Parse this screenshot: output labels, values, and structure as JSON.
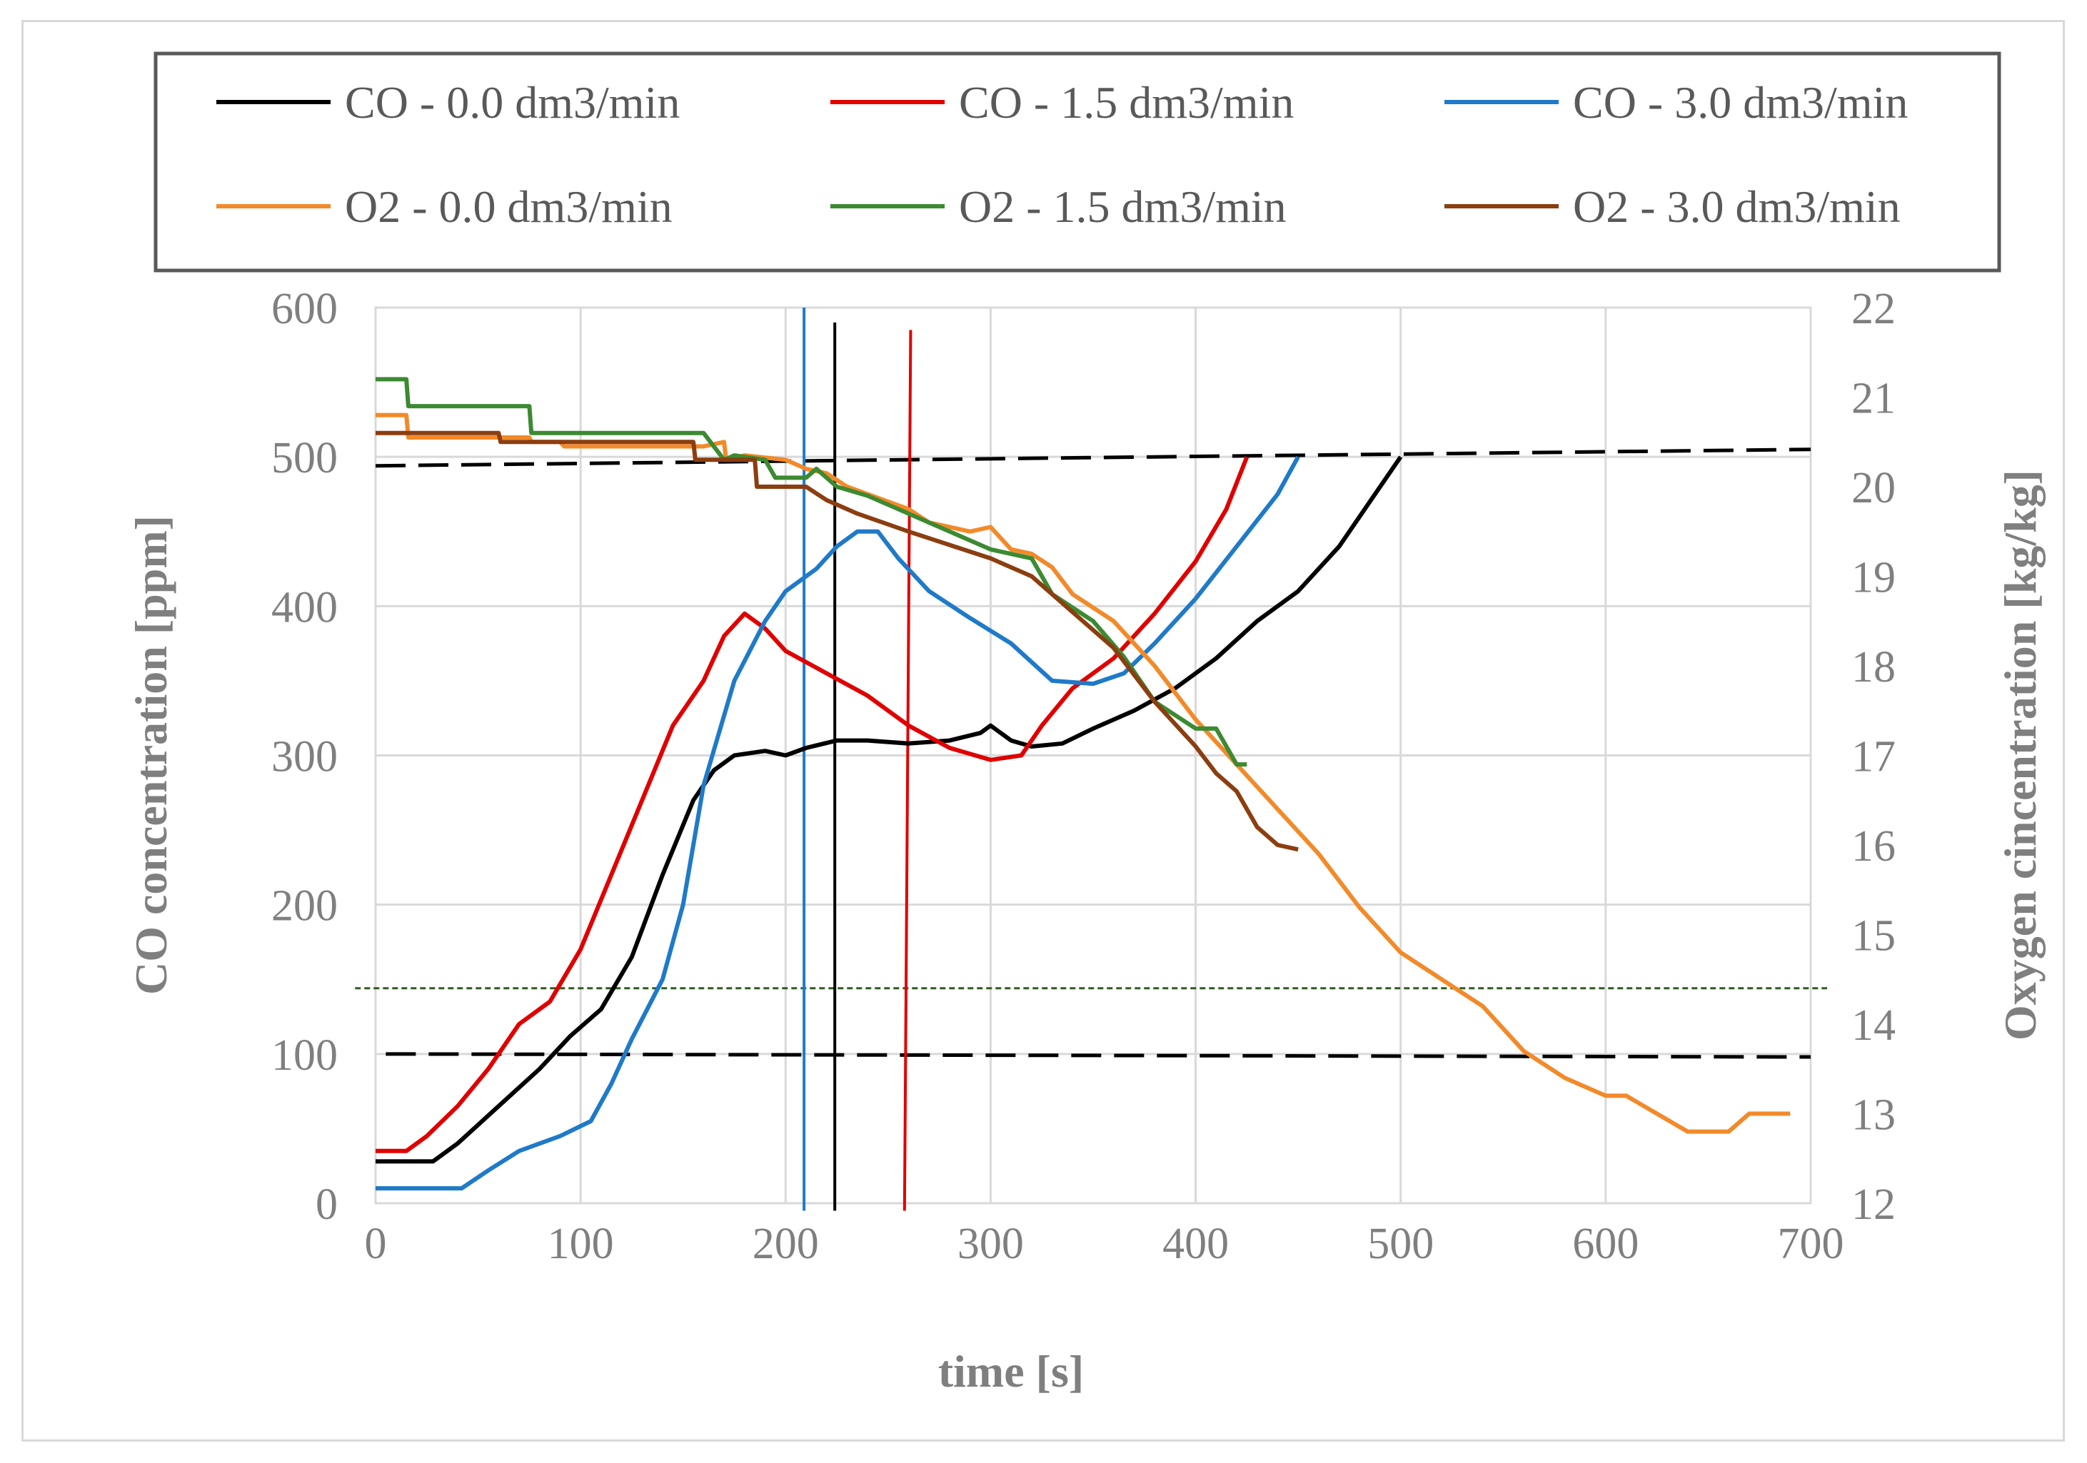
{
  "chart_data": {
    "type": "line",
    "title": "",
    "xlabel": "time [s]",
    "ylabel": "CO concentration [ppm]",
    "y2label": "Oxygen cincentration [kg/kg]",
    "xlim": [
      0,
      700
    ],
    "ylim": [
      0,
      600
    ],
    "y2lim": [
      12,
      22
    ],
    "x_ticks": [
      "0",
      "100",
      "200",
      "300",
      "400",
      "500",
      "600",
      "700"
    ],
    "y_ticks": [
      "0",
      "100",
      "200",
      "300",
      "400",
      "500",
      "600"
    ],
    "y2_ticks": [
      "12",
      "13",
      "14",
      "15",
      "16",
      "17",
      "18",
      "19",
      "20",
      "21",
      "22"
    ],
    "legend_position": "top",
    "grid": true,
    "series": [
      {
        "name": "CO - 0.0 dm3/min",
        "axis": "left",
        "color": "#000000",
        "x": [
          0,
          28,
          40,
          60,
          80,
          95,
          110,
          125,
          140,
          155,
          165,
          175,
          190,
          200,
          210,
          225,
          240,
          260,
          280,
          295,
          300,
          310,
          320,
          335,
          350,
          370,
          390,
          410,
          430,
          450,
          470,
          485,
          500
        ],
        "y": [
          28,
          28,
          40,
          65,
          90,
          112,
          130,
          165,
          220,
          270,
          290,
          300,
          303,
          300,
          305,
          310,
          310,
          308,
          310,
          315,
          320,
          310,
          306,
          308,
          318,
          330,
          345,
          365,
          390,
          410,
          440,
          470,
          500
        ]
      },
      {
        "name": "CO - 1.5 dm3/min",
        "axis": "left",
        "color": "#e00000",
        "x": [
          0,
          15,
          25,
          40,
          55,
          70,
          85,
          100,
          115,
          130,
          145,
          160,
          170,
          180,
          190,
          200,
          220,
          240,
          260,
          280,
          300,
          315,
          325,
          340,
          360,
          380,
          400,
          415,
          425
        ],
        "y": [
          35,
          35,
          45,
          65,
          90,
          120,
          135,
          170,
          220,
          270,
          320,
          350,
          380,
          395,
          385,
          370,
          355,
          340,
          320,
          305,
          297,
          300,
          320,
          345,
          365,
          395,
          430,
          465,
          500
        ]
      },
      {
        "name": "CO - 3.0 dm3/min",
        "axis": "left",
        "color": "#1f7ac8",
        "x": [
          0,
          42,
          55,
          70,
          90,
          105,
          115,
          125,
          140,
          150,
          160,
          175,
          190,
          200,
          215,
          225,
          235,
          245,
          255,
          270,
          290,
          310,
          330,
          350,
          365,
          380,
          400,
          420,
          440,
          450
        ],
        "y": [
          10,
          10,
          22,
          35,
          45,
          55,
          80,
          110,
          150,
          200,
          280,
          350,
          390,
          410,
          425,
          440,
          450,
          450,
          432,
          410,
          392,
          375,
          350,
          348,
          355,
          375,
          405,
          440,
          475,
          500
        ]
      },
      {
        "name": "O2 - 0.0 dm3/min",
        "axis": "right",
        "color": "#f28a2a",
        "x": [
          0,
          15,
          16,
          75,
          76,
          90,
          92,
          160,
          170,
          171,
          180,
          200,
          210,
          220,
          230,
          260,
          270,
          290,
          300,
          310,
          320,
          330,
          340,
          360,
          380,
          400,
          420,
          440,
          460,
          480,
          500,
          520,
          540,
          560,
          580,
          600,
          610,
          640,
          660,
          670,
          690
        ],
        "y": [
          20.8,
          20.8,
          20.55,
          20.55,
          20.5,
          20.5,
          20.45,
          20.45,
          20.5,
          20.3,
          20.35,
          20.3,
          20.2,
          20.15,
          20.0,
          19.75,
          19.6,
          19.5,
          19.55,
          19.3,
          19.25,
          19.1,
          18.8,
          18.5,
          18.0,
          17.4,
          16.9,
          16.4,
          15.9,
          15.3,
          14.8,
          14.5,
          14.2,
          13.7,
          13.4,
          13.2,
          13.2,
          12.8,
          12.8,
          13.0,
          13.0
        ]
      },
      {
        "name": "O2 - 1.5 dm3/min",
        "axis": "right",
        "color": "#3c8a32",
        "x": [
          0,
          15,
          16,
          75,
          76,
          160,
          170,
          175,
          190,
          195,
          210,
          215,
          225,
          240,
          260,
          280,
          300,
          320,
          330,
          350,
          365,
          380,
          400,
          410,
          420,
          425
        ],
        "y": [
          21.2,
          21.2,
          20.9,
          20.9,
          20.6,
          20.6,
          20.3,
          20.35,
          20.3,
          20.1,
          20.1,
          20.2,
          20.0,
          19.9,
          19.7,
          19.5,
          19.3,
          19.2,
          18.8,
          18.5,
          18.1,
          17.6,
          17.3,
          17.3,
          16.9,
          16.9
        ]
      },
      {
        "name": "O2 - 3.0 dm3/min",
        "axis": "right",
        "color": "#8b3e10",
        "x": [
          0,
          60,
          61,
          155,
          156,
          185,
          186,
          210,
          220,
          235,
          260,
          280,
          300,
          320,
          340,
          360,
          380,
          400,
          410,
          420,
          430,
          440,
          450
        ],
        "y": [
          20.6,
          20.6,
          20.5,
          20.5,
          20.3,
          20.3,
          20.0,
          20.0,
          19.85,
          19.7,
          19.5,
          19.35,
          19.2,
          19.0,
          18.6,
          18.2,
          17.6,
          17.1,
          16.8,
          16.6,
          16.2,
          16.0,
          15.95
        ]
      }
    ],
    "reference_lines": [
      {
        "type": "horizontal",
        "axis": "left",
        "y_start": 494,
        "y_end": 505,
        "x_from": 0,
        "x_to": 700,
        "style": "dashed",
        "color": "#000000"
      },
      {
        "type": "horizontal",
        "axis": "left",
        "y_start": 100,
        "y_end": 98,
        "x_from": 5,
        "x_to": 700,
        "style": "dashed",
        "color": "#000000"
      },
      {
        "type": "horizontal",
        "axis": "right",
        "y": 14.4,
        "x_from": -10,
        "x_to": 708,
        "style": "dotted",
        "color": "#2e5d1f"
      },
      {
        "type": "vertical",
        "x": 209,
        "y_from": -5,
        "y_to": 600,
        "color": "#1f7ac8"
      },
      {
        "type": "vertical",
        "x": 224,
        "y_from": -5,
        "y_to": 590,
        "color": "#000000"
      },
      {
        "type": "vertical",
        "x_start": 258,
        "x_end": 261,
        "y_from": -5,
        "y_to": 585,
        "color": "#e00000"
      }
    ]
  }
}
